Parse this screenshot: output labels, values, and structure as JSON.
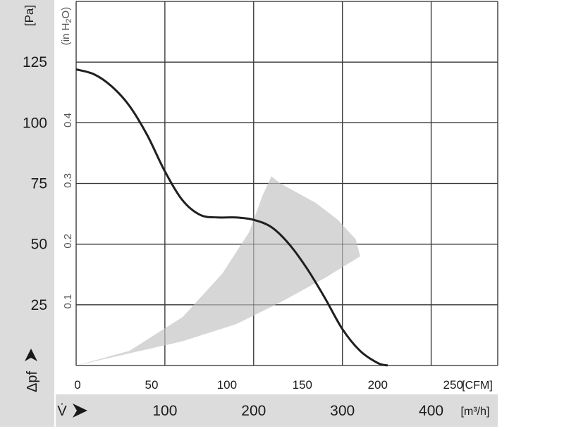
{
  "chart_data": {
    "type": "line",
    "title": "",
    "pressure_axis": {
      "unit_label": "[Pa]",
      "ticks": [
        25,
        50,
        75,
        100,
        125
      ],
      "range": [
        0,
        150
      ]
    },
    "pressure_axis_secondary": {
      "unit_label": "(in H2O)",
      "ticks": [
        "0.1",
        "0.2",
        "0.3",
        "0.4"
      ]
    },
    "pressure_symbol": "Δpf",
    "flow_axis_cfm": {
      "unit_label": "[CFM]",
      "ticks": [
        0,
        50,
        100,
        150,
        200,
        250
      ]
    },
    "flow_axis_m3h": {
      "unit_label": "[m³/h]",
      "ticks": [
        100,
        200,
        300,
        400
      ],
      "range": [
        0,
        475
      ]
    },
    "flow_symbol": "V̇",
    "grid": true,
    "series": [
      {
        "x_unit": "m³/h",
        "x": [
          0,
          20,
          40,
          60,
          80,
          100,
          120,
          140,
          160,
          180,
          200,
          220,
          240,
          260,
          280,
          300,
          320,
          340,
          351
        ],
        "y": [
          122,
          120,
          115,
          107,
          95,
          80,
          68,
          62,
          61,
          61,
          60,
          57,
          50,
          40,
          28,
          15,
          6,
          1,
          0
        ]
      }
    ],
    "operating_region": {
      "x_unit": "m³/h",
      "outline": [
        [
          0,
          0
        ],
        [
          60,
          5
        ],
        [
          120,
          10
        ],
        [
          180,
          17
        ],
        [
          230,
          26
        ],
        [
          280,
          36
        ],
        [
          320,
          45
        ],
        [
          315,
          52
        ],
        [
          295,
          60
        ],
        [
          270,
          67
        ],
        [
          245,
          72
        ],
        [
          230,
          75
        ],
        [
          220,
          78
        ],
        [
          210,
          70
        ],
        [
          195,
          55
        ],
        [
          165,
          38
        ],
        [
          120,
          20
        ],
        [
          60,
          6
        ],
        [
          0,
          0
        ]
      ]
    }
  }
}
